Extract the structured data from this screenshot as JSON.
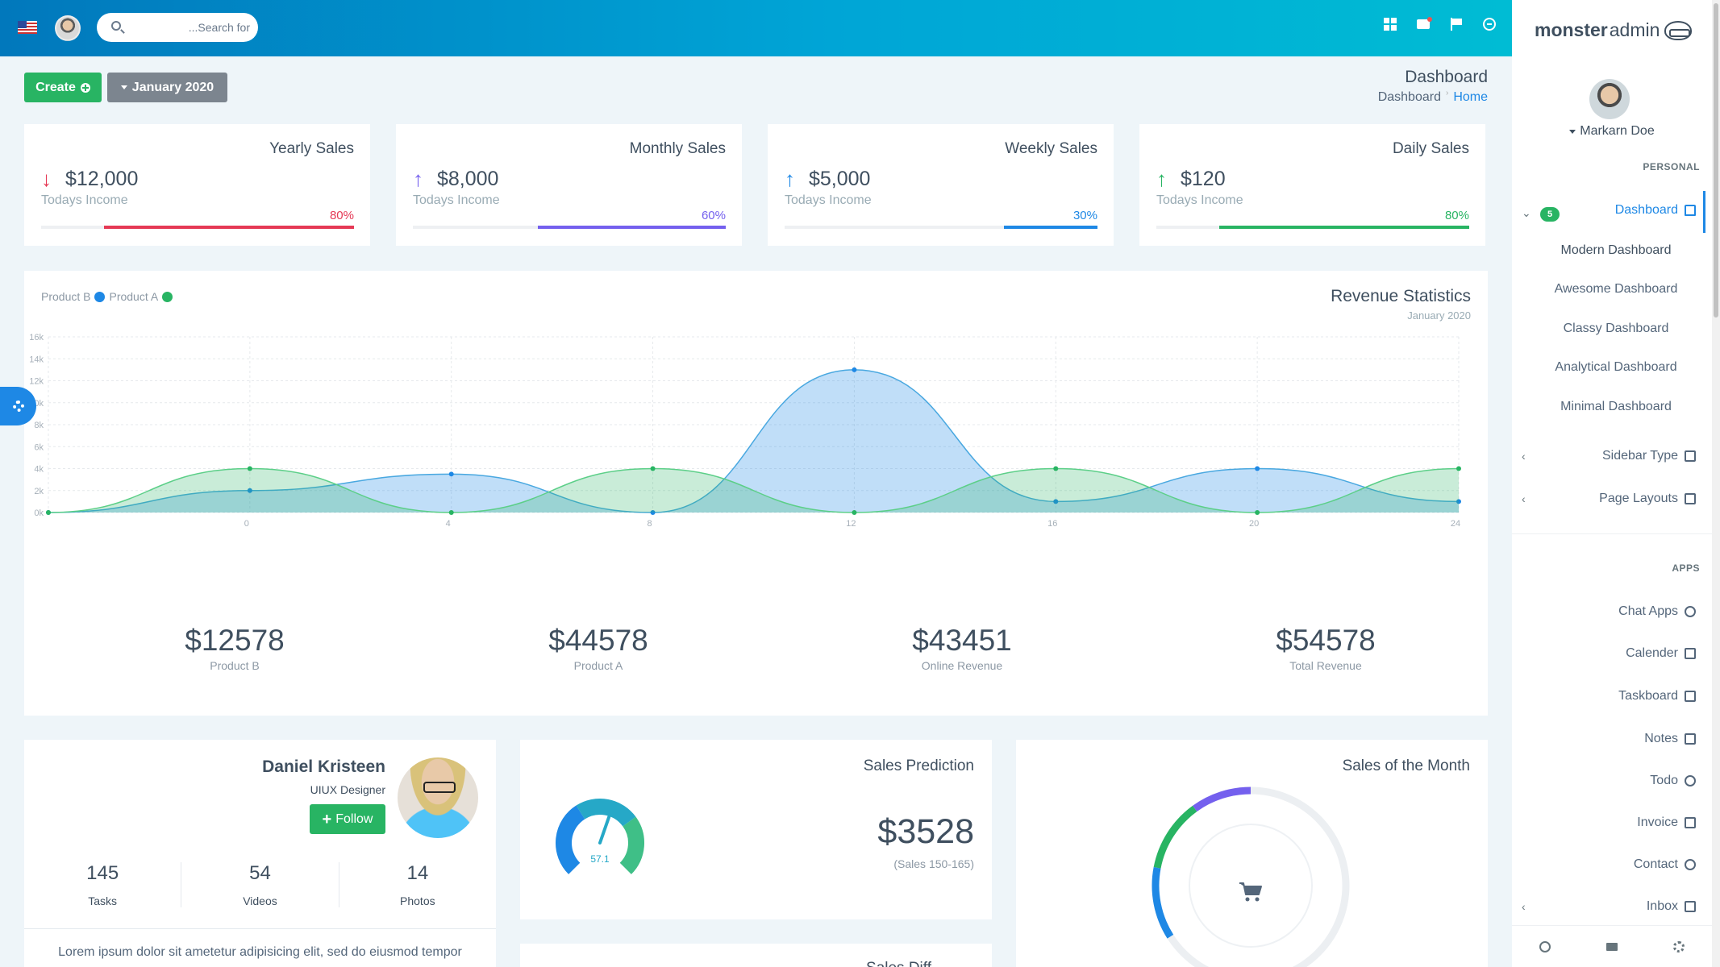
{
  "topbar": {
    "search_placeholder": "...Search for",
    "icons": [
      "flag-us-icon",
      "user-avatar",
      "grid-icon",
      "mail-icon",
      "flag-icon",
      "power-icon"
    ]
  },
  "actions": {
    "create_label": "Create",
    "date_label": "January 2020"
  },
  "page": {
    "title": "Dashboard",
    "breadcrumb": [
      "Dashboard",
      "Home"
    ]
  },
  "stats": [
    {
      "title": "Yearly Sales",
      "value": "$12,000",
      "sub": "Todays Income",
      "percent": "80%",
      "fill": 0.8,
      "direction": "down",
      "color": "#e53955"
    },
    {
      "title": "Monthly Sales",
      "value": "$8,000",
      "sub": "Todays Income",
      "percent": "60%",
      "fill": 0.6,
      "direction": "up",
      "color": "#7460ee"
    },
    {
      "title": "Weekly Sales",
      "value": "$5,000",
      "sub": "Todays Income",
      "percent": "30%",
      "fill": 0.3,
      "direction": "up",
      "color": "#1e88e5"
    },
    {
      "title": "Daily Sales",
      "value": "$120",
      "sub": "Todays Income",
      "percent": "80%",
      "fill": 0.8,
      "direction": "up",
      "color": "#28b463"
    }
  ],
  "revenue": {
    "legend": [
      {
        "name": "Product B",
        "color": "#1e88e5"
      },
      {
        "name": "Product A",
        "color": "#28b463"
      }
    ],
    "title": "Revenue Statistics",
    "subtitle": "January 2020",
    "totals": [
      {
        "value": "$12578",
        "label": "Product B"
      },
      {
        "value": "$44578",
        "label": "Product A"
      },
      {
        "value": "$43451",
        "label": "Online Revenue"
      },
      {
        "value": "$54578",
        "label": "Total Revenue"
      }
    ]
  },
  "chart_data": {
    "type": "area",
    "x_ticks": [
      "0",
      "4",
      "8",
      "12",
      "16",
      "20",
      "24"
    ],
    "y_ticks": [
      "0k",
      "2k",
      "4k",
      "6k",
      "8k",
      "10k",
      "12k",
      "14k",
      "16k"
    ],
    "ylim": [
      0,
      16
    ],
    "x": [
      0,
      4,
      8,
      12,
      16,
      20,
      24,
      28
    ],
    "series": [
      {
        "name": "Product B",
        "color": "#1e88e5",
        "values": [
          0,
          2,
          3.5,
          0,
          13,
          1,
          4,
          1
        ]
      },
      {
        "name": "Product A",
        "color": "#28b463",
        "values": [
          0,
          4,
          0,
          4,
          0,
          4,
          0,
          4
        ]
      }
    ],
    "grid": true,
    "legend": "top-left"
  },
  "profile": {
    "name": "Daniel Kristeen",
    "role": "UIUX Designer",
    "follow_label": "Follow",
    "stats": [
      {
        "value": "145",
        "label": "Tasks"
      },
      {
        "value": "54",
        "label": "Videos"
      },
      {
        "value": "14",
        "label": "Photos"
      }
    ],
    "description": "Lorem ipsum dolor sit ametetur adipisicing elit, sed do eiusmod tempor"
  },
  "prediction": {
    "title": "Sales Prediction",
    "value": "$3528",
    "sub": "(Sales 150-165)",
    "gauge_value": "57.1",
    "gauge_level": 0.571
  },
  "sales_diff": {
    "title": "Sales Diff"
  },
  "month_sales": {
    "title": "Sales of the Month",
    "segments": [
      {
        "color": "#7460ee",
        "fraction": 0.1
      },
      {
        "color": "#28b463",
        "fraction": 0.12
      },
      {
        "color": "#1e88e5",
        "fraction": 0.12
      }
    ]
  },
  "sidebar": {
    "brand_bold": "monster",
    "brand_light": "admin",
    "user": "Markarn Doe",
    "section_personal": "PERSONAL",
    "dashboard": {
      "label": "Dashboard",
      "badge": "5"
    },
    "sub_items": [
      "Modern Dashboard",
      "Awesome Dashboard",
      "Classy Dashboard",
      "Analytical Dashboard",
      "Minimal Dashboard"
    ],
    "sidebar_type": "Sidebar Type",
    "page_layouts": "Page Layouts",
    "section_apps": "APPS",
    "apps": [
      "Chat Apps",
      "Calender",
      "Taskboard",
      "Notes",
      "Todo",
      "Invoice",
      "Contact",
      "Inbox"
    ]
  }
}
